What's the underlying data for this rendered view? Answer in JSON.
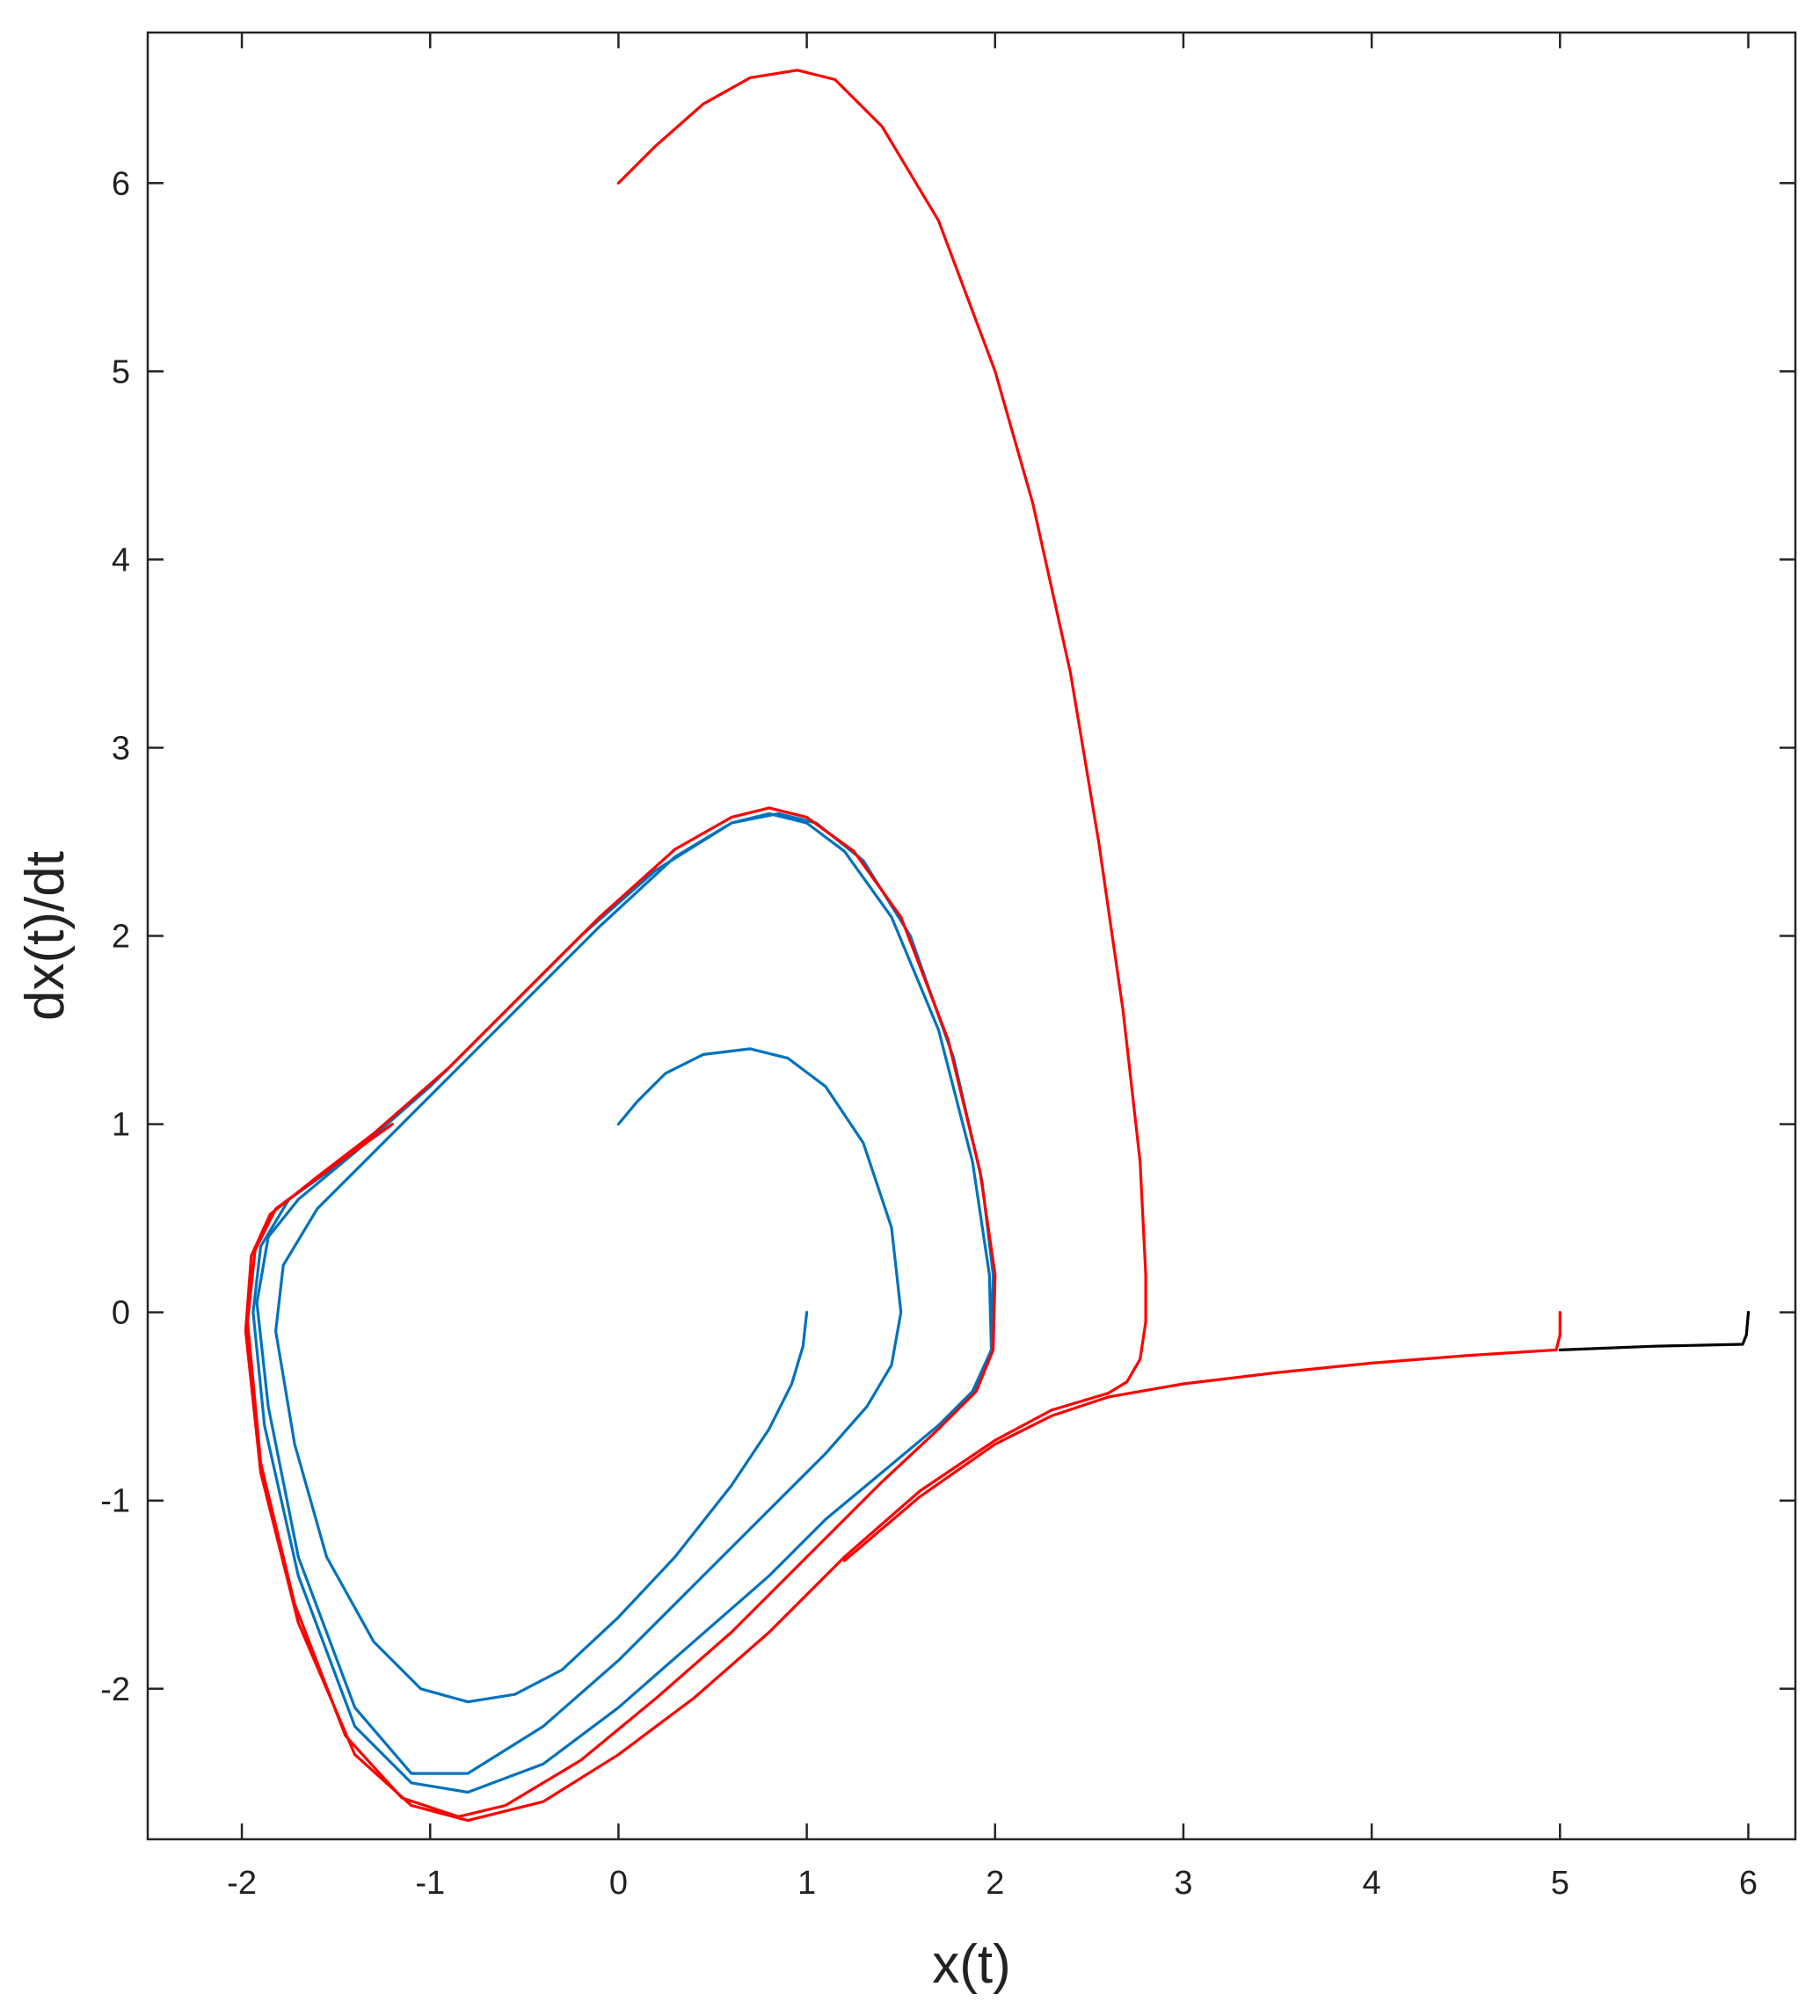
{
  "chart_data": {
    "type": "line",
    "title": "",
    "xlabel": "x(t)",
    "ylabel": "dx(t)/dt",
    "xlim": [
      -2.5,
      6.25
    ],
    "ylim": [
      -2.8,
      6.8
    ],
    "xticks": [
      -2,
      -1,
      0,
      1,
      2,
      3,
      4,
      5,
      6
    ],
    "yticks": [
      -2,
      -1,
      0,
      1,
      2,
      3,
      4,
      5,
      6
    ],
    "xtick_labels": [
      "-2",
      "-1",
      "0",
      "1",
      "2",
      "3",
      "4",
      "5",
      "6"
    ],
    "ytick_labels": [
      "-2",
      "-1",
      "0",
      "1",
      "2",
      "3",
      "4",
      "5",
      "6"
    ],
    "grid": false,
    "legend": "none",
    "series": [
      {
        "color": "#0072BD",
        "points": [
          [
            1.0,
            0.0
          ],
          [
            0.98,
            -0.18
          ],
          [
            0.92,
            -0.38
          ],
          [
            0.8,
            -0.62
          ],
          [
            0.6,
            -0.92
          ],
          [
            0.3,
            -1.3
          ],
          [
            0.0,
            -1.62
          ],
          [
            -0.3,
            -1.9
          ],
          [
            -0.55,
            -2.03
          ],
          [
            -0.8,
            -2.07
          ],
          [
            -1.05,
            -2.0
          ],
          [
            -1.3,
            -1.75
          ],
          [
            -1.55,
            -1.3
          ],
          [
            -1.72,
            -0.7
          ],
          [
            -1.82,
            -0.1
          ],
          [
            -1.78,
            0.25
          ],
          [
            -1.6,
            0.55
          ],
          [
            -1.3,
            0.85
          ],
          [
            -0.9,
            1.25
          ],
          [
            -0.5,
            1.65
          ],
          [
            -0.1,
            2.05
          ],
          [
            0.3,
            2.42
          ],
          [
            0.6,
            2.6
          ],
          [
            0.8,
            2.65
          ],
          [
            1.0,
            2.6
          ],
          [
            1.2,
            2.45
          ],
          [
            1.45,
            2.1
          ],
          [
            1.7,
            1.5
          ],
          [
            1.88,
            0.8
          ],
          [
            1.97,
            0.2
          ],
          [
            1.98,
            -0.2
          ],
          [
            1.9,
            -0.4
          ],
          [
            1.7,
            -0.6
          ],
          [
            1.4,
            -0.85
          ],
          [
            1.1,
            -1.1
          ],
          [
            0.8,
            -1.4
          ],
          [
            0.4,
            -1.75
          ],
          [
            0.0,
            -2.1
          ],
          [
            -0.4,
            -2.4
          ],
          [
            -0.8,
            -2.55
          ],
          [
            -1.1,
            -2.5
          ],
          [
            -1.4,
            -2.2
          ],
          [
            -1.7,
            -1.4
          ],
          [
            -1.88,
            -0.6
          ],
          [
            -1.94,
            0.0
          ],
          [
            -1.9,
            0.35
          ],
          [
            -1.75,
            0.6
          ],
          [
            -1.4,
            0.85
          ],
          [
            -1.0,
            1.2
          ],
          [
            -0.6,
            1.6
          ],
          [
            -0.2,
            2.0
          ],
          [
            0.2,
            2.35
          ],
          [
            0.6,
            2.6
          ],
          [
            0.85,
            2.65
          ],
          [
            1.05,
            2.6
          ],
          [
            1.3,
            2.4
          ],
          [
            1.55,
            2.0
          ],
          [
            1.78,
            1.35
          ],
          [
            1.93,
            0.7
          ],
          [
            1.99,
            0.2
          ],
          [
            1.98,
            -0.2
          ],
          [
            1.88,
            -0.42
          ],
          [
            1.7,
            -0.62
          ]
        ]
      },
      {
        "color": "#0072BD",
        "points": [
          [
            0.0,
            1.0
          ],
          [
            0.1,
            1.12
          ],
          [
            0.25,
            1.27
          ],
          [
            0.45,
            1.37
          ],
          [
            0.7,
            1.4
          ],
          [
            0.9,
            1.35
          ],
          [
            1.1,
            1.2
          ],
          [
            1.3,
            0.9
          ],
          [
            1.45,
            0.45
          ],
          [
            1.5,
            0.0
          ],
          [
            1.45,
            -0.28
          ],
          [
            1.32,
            -0.5
          ],
          [
            1.1,
            -0.75
          ],
          [
            0.8,
            -1.05
          ],
          [
            0.4,
            -1.45
          ],
          [
            0.0,
            -1.85
          ],
          [
            -0.4,
            -2.2
          ],
          [
            -0.8,
            -2.45
          ],
          [
            -1.1,
            -2.45
          ],
          [
            -1.4,
            -2.1
          ],
          [
            -1.7,
            -1.3
          ],
          [
            -1.86,
            -0.5
          ],
          [
            -1.92,
            0.05
          ],
          [
            -1.86,
            0.4
          ],
          [
            -1.7,
            0.6
          ],
          [
            -1.4,
            0.85
          ]
        ]
      },
      {
        "color": "#FF0000",
        "points": [
          [
            0.0,
            6.0
          ],
          [
            0.2,
            6.2
          ],
          [
            0.45,
            6.42
          ],
          [
            0.7,
            6.56
          ],
          [
            0.95,
            6.6
          ],
          [
            1.15,
            6.55
          ],
          [
            1.4,
            6.3
          ],
          [
            1.7,
            5.8
          ],
          [
            2.0,
            5.0
          ],
          [
            2.2,
            4.3
          ],
          [
            2.4,
            3.4
          ],
          [
            2.55,
            2.5
          ],
          [
            2.68,
            1.6
          ],
          [
            2.77,
            0.8
          ],
          [
            2.8,
            0.2
          ],
          [
            2.8,
            -0.05
          ],
          [
            2.77,
            -0.25
          ],
          [
            2.7,
            -0.37
          ],
          [
            2.6,
            -0.43
          ],
          [
            2.3,
            -0.52
          ],
          [
            2.0,
            -0.68
          ],
          [
            1.6,
            -0.95
          ],
          [
            1.2,
            -1.3
          ],
          [
            0.8,
            -1.7
          ],
          [
            0.4,
            -2.05
          ],
          [
            0.0,
            -2.35
          ],
          [
            -0.4,
            -2.6
          ],
          [
            -0.8,
            -2.7
          ],
          [
            -1.1,
            -2.62
          ],
          [
            -1.4,
            -2.35
          ],
          [
            -1.7,
            -1.65
          ],
          [
            -1.9,
            -0.85
          ],
          [
            -1.98,
            -0.1
          ],
          [
            -1.95,
            0.3
          ],
          [
            -1.85,
            0.52
          ],
          [
            -1.6,
            0.72
          ],
          [
            -1.3,
            0.95
          ],
          [
            -0.9,
            1.3
          ],
          [
            -0.5,
            1.7
          ],
          [
            -0.1,
            2.1
          ],
          [
            0.3,
            2.46
          ],
          [
            0.6,
            2.63
          ],
          [
            0.8,
            2.68
          ],
          [
            1.0,
            2.63
          ],
          [
            1.25,
            2.45
          ],
          [
            1.5,
            2.1
          ],
          [
            1.75,
            1.45
          ],
          [
            1.92,
            0.75
          ],
          [
            2.0,
            0.2
          ],
          [
            1.99,
            -0.2
          ],
          [
            1.9,
            -0.42
          ],
          [
            1.7,
            -0.62
          ],
          [
            1.4,
            -0.9
          ],
          [
            1.0,
            -1.3
          ],
          [
            0.6,
            -1.7
          ],
          [
            0.2,
            -2.05
          ],
          [
            -0.2,
            -2.38
          ],
          [
            -0.6,
            -2.62
          ],
          [
            -0.85,
            -2.68
          ],
          [
            -1.15,
            -2.58
          ],
          [
            -1.45,
            -2.25
          ],
          [
            -1.72,
            -1.55
          ],
          [
            -1.9,
            -0.8
          ],
          [
            -1.97,
            -0.05
          ],
          [
            -1.93,
            0.33
          ],
          [
            -1.82,
            0.55
          ],
          [
            -1.55,
            0.75
          ],
          [
            -1.2,
            1.0
          ]
        ]
      },
      {
        "color": "#FF0000",
        "points": [
          [
            5.0,
            0.0
          ],
          [
            5.0,
            -0.12
          ],
          [
            4.98,
            -0.2
          ],
          [
            4.5,
            -0.23
          ],
          [
            4.0,
            -0.27
          ],
          [
            3.5,
            -0.32
          ],
          [
            3.0,
            -0.38
          ],
          [
            2.6,
            -0.45
          ],
          [
            2.3,
            -0.55
          ],
          [
            2.0,
            -0.7
          ],
          [
            1.6,
            -0.98
          ],
          [
            1.2,
            -1.32
          ]
        ]
      },
      {
        "color": "#000000",
        "points": [
          [
            6.0,
            0.0
          ],
          [
            5.99,
            -0.12
          ],
          [
            5.97,
            -0.17
          ],
          [
            5.5,
            -0.18
          ],
          [
            5.0,
            -0.2
          ]
        ]
      }
    ]
  }
}
